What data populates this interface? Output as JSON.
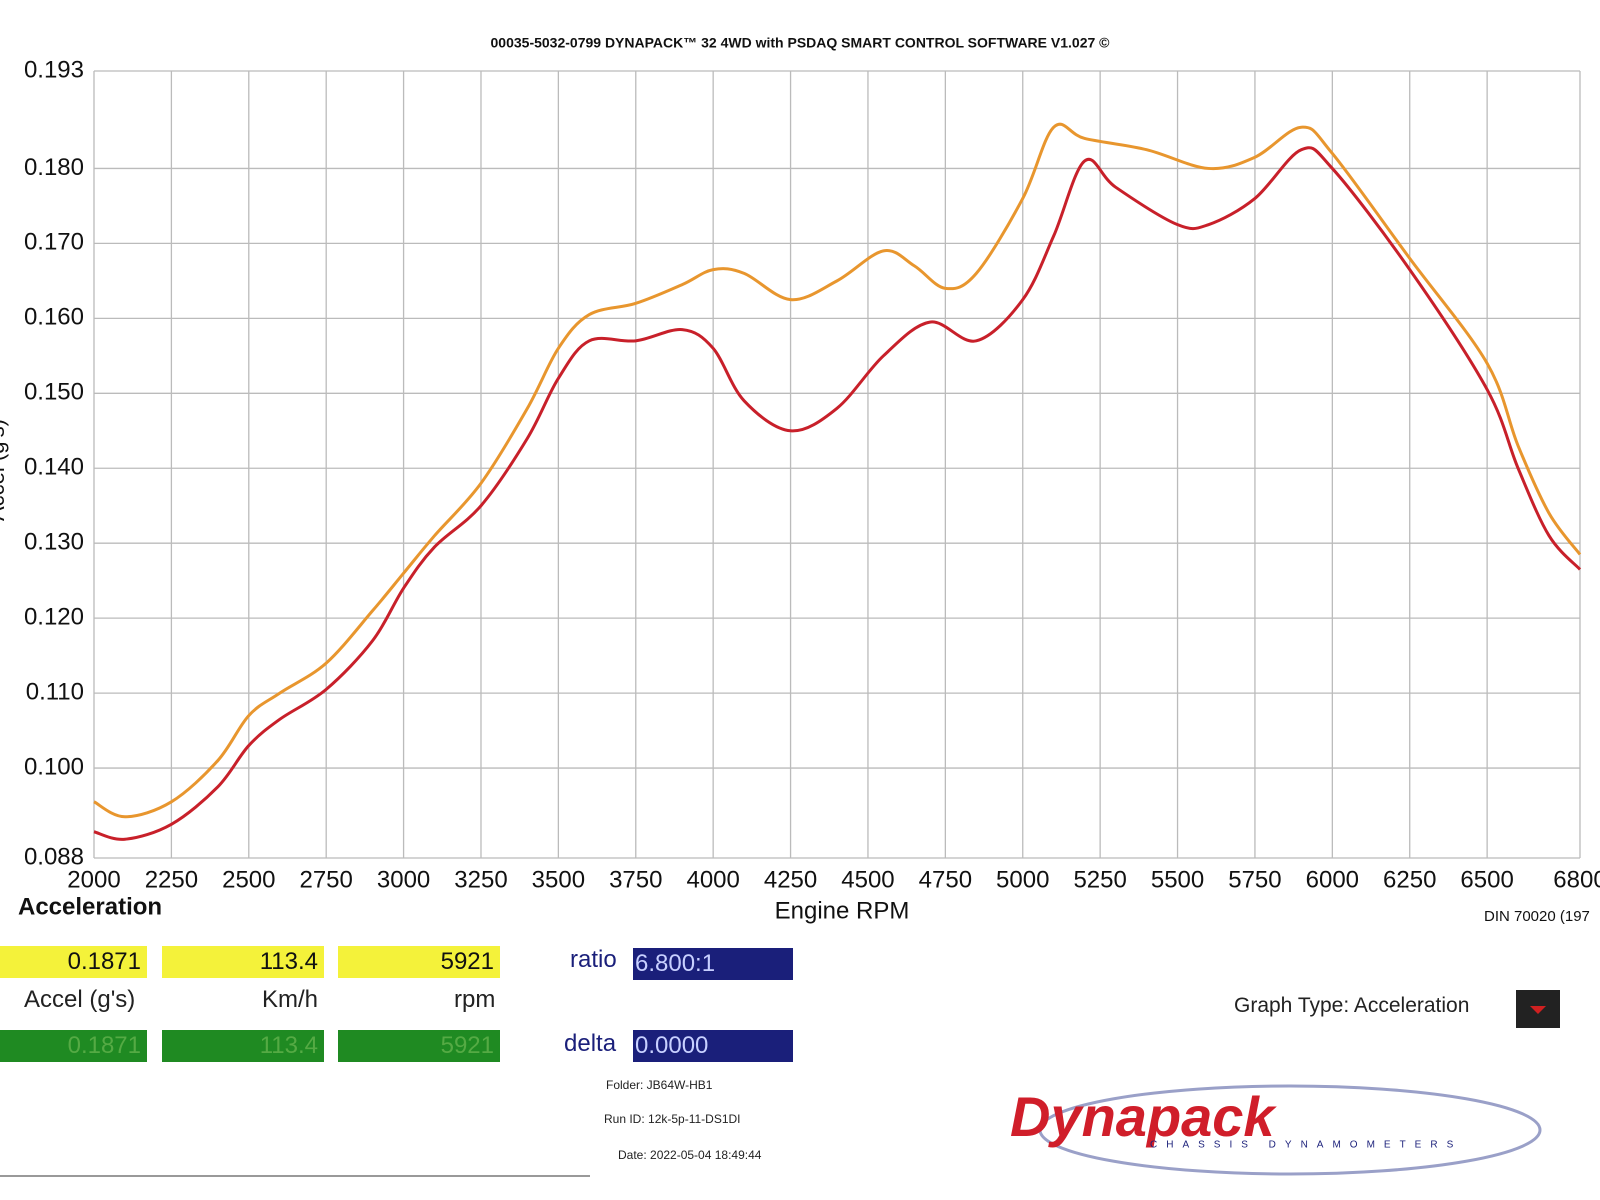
{
  "chart_data": {
    "type": "line",
    "title": "00035-5032-0799 DYNAPACK™ 32 4WD with PSDAQ SMART CONTROL SOFTWARE V1.027 ©",
    "x_label": "Engine RPM",
    "y_label": "Accel (g's)",
    "chart_label": "Acceleration",
    "footnote": "DIN 70020 (197",
    "xlim": [
      2000,
      6800
    ],
    "xticks": [
      2000,
      2250,
      2500,
      2750,
      3000,
      3250,
      3500,
      3750,
      4000,
      4250,
      4500,
      4750,
      5000,
      5250,
      5500,
      5750,
      6000,
      6250,
      6500,
      6800
    ],
    "ylim": [
      0.088,
      0.193
    ],
    "yticks": [
      0.088,
      {
        "value": 0.1,
        "label": "0.100"
      },
      {
        "value": 0.11,
        "label": "0.110"
      },
      {
        "value": 0.12,
        "label": "0.120"
      },
      {
        "value": 0.13,
        "label": "0.130"
      },
      {
        "value": 0.14,
        "label": "0.140"
      },
      {
        "value": 0.15,
        "label": "0.150"
      },
      {
        "value": 0.16,
        "label": "0.160"
      },
      {
        "value": 0.17,
        "label": "0.170"
      },
      {
        "value": 0.18,
        "label": "0.180"
      },
      0.193
    ],
    "grid": true,
    "series": [
      {
        "color": "#e8962e",
        "x": [
          2000,
          2100,
          2250,
          2400,
          2500,
          2600,
          2750,
          2900,
          3000,
          3100,
          3250,
          3400,
          3500,
          3600,
          3750,
          3900,
          4000,
          4100,
          4250,
          4400,
          4550,
          4650,
          4750,
          4850,
          5000,
          5100,
          5200,
          5400,
          5600,
          5750,
          5900,
          6000,
          6250,
          6500,
          6600,
          6700,
          6800
        ],
        "values": [
          0.0955,
          0.0935,
          0.0955,
          0.101,
          0.107,
          0.11,
          0.114,
          0.121,
          0.126,
          0.131,
          0.138,
          0.148,
          0.156,
          0.1605,
          0.162,
          0.1645,
          0.1665,
          0.166,
          0.1625,
          0.165,
          0.169,
          0.167,
          0.164,
          0.166,
          0.176,
          0.1855,
          0.184,
          0.1825,
          0.18,
          0.1815,
          0.1855,
          0.182,
          0.168,
          0.154,
          0.143,
          0.134,
          0.1285
        ]
      },
      {
        "color": "#c8202a",
        "x": [
          2000,
          2100,
          2250,
          2400,
          2500,
          2600,
          2750,
          2900,
          3000,
          3100,
          3250,
          3400,
          3500,
          3600,
          3750,
          3900,
          4000,
          4100,
          4250,
          4400,
          4550,
          4700,
          4850,
          5000,
          5100,
          5200,
          5300,
          5500,
          5600,
          5750,
          5900,
          6000,
          6250,
          6500,
          6600,
          6700,
          6800
        ],
        "values": [
          0.0915,
          0.0905,
          0.0925,
          0.0975,
          0.103,
          0.1065,
          0.1105,
          0.117,
          0.124,
          0.1295,
          0.135,
          0.144,
          0.152,
          0.157,
          0.157,
          0.1585,
          0.156,
          0.149,
          0.145,
          0.148,
          0.155,
          0.1595,
          0.157,
          0.1625,
          0.171,
          0.181,
          0.1775,
          0.1725,
          0.1725,
          0.176,
          0.1825,
          0.18,
          0.1665,
          0.1505,
          0.14,
          0.131,
          0.1265
        ]
      }
    ]
  },
  "readouts": {
    "yellow": [
      "0.1871",
      "113.4",
      "5921"
    ],
    "units": [
      "Accel (g's)",
      "Km/h",
      "rpm"
    ],
    "green": [
      "0.1871",
      "113.4",
      "5921"
    ],
    "ratio_label": "ratio",
    "ratio": "6.800:1",
    "delta_label": "delta",
    "delta": "0.0000"
  },
  "run_info": {
    "folder": "Folder:  JB64W-HB1",
    "run_id": "Run ID:  12k-5p-11-DS1DI",
    "date": "Date:  2022-05-04 18:49:44"
  },
  "graph_type": "Graph Type: Acceleration",
  "logo": {
    "name": "Dynapack",
    "tagline": "CHASSIS DYNAMOMETERS"
  }
}
